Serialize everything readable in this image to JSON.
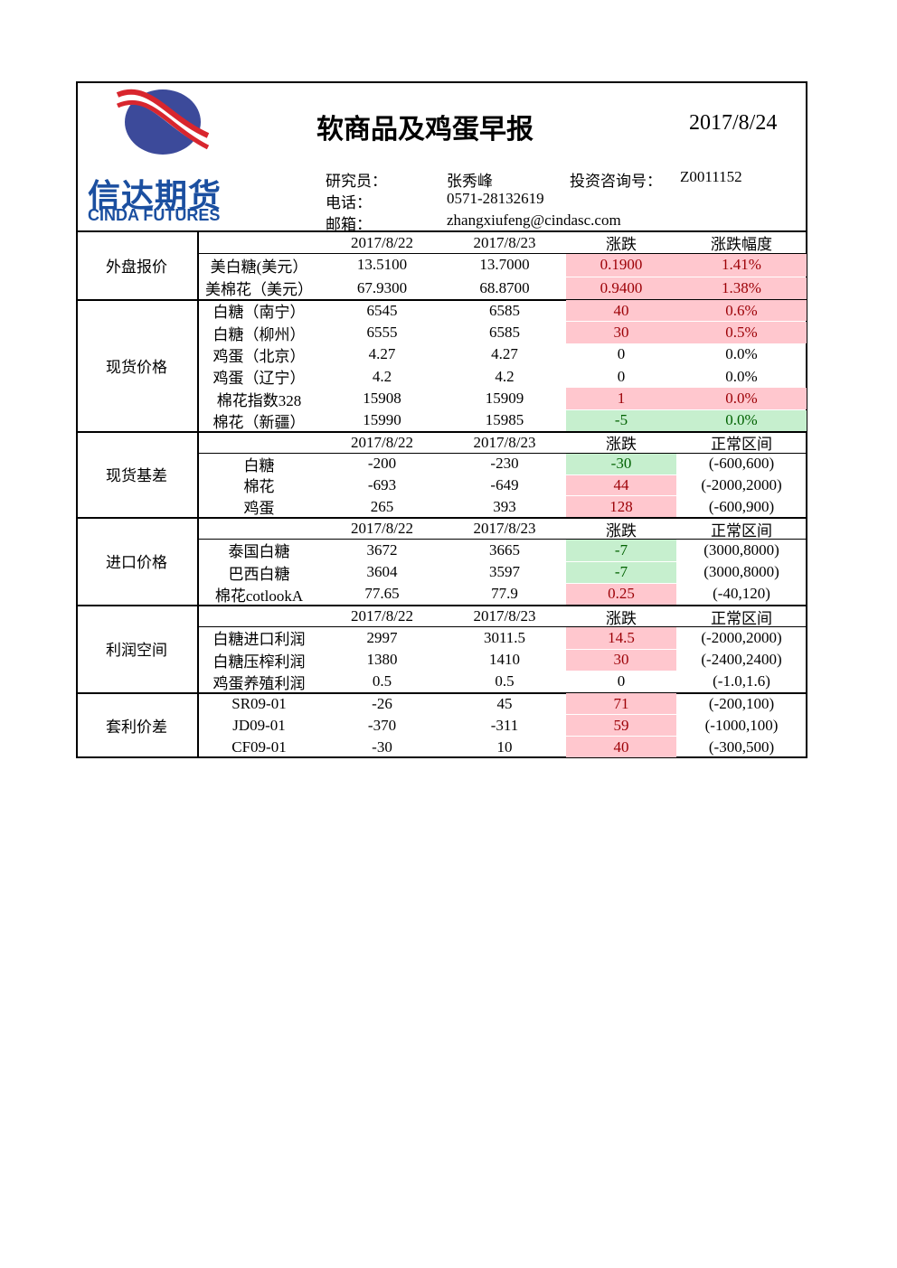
{
  "header": {
    "title": "软商品及鸡蛋早报",
    "date": "2017/8/24",
    "logo_cn": "信达期货",
    "logo_en": "CINDA FUTURES",
    "researcher_label": "研究员：",
    "researcher": "张秀峰",
    "license_label": "投资咨询号：",
    "license": "Z0011152",
    "phone_label": "电话：",
    "phone": "0571-28132619",
    "email_label": "邮箱：",
    "email": "zhangxiufeng@cindasc.com"
  },
  "sections": [
    {
      "name": "外盘报价",
      "columns": [
        "2017/8/22",
        "2017/8/23",
        "涨跌",
        "涨跌幅度"
      ],
      "highlight_cols": [
        3,
        4
      ],
      "rows": [
        {
          "cells": [
            "美白糖(美元）",
            "13.5100",
            "13.7000",
            "0.1900",
            "1.41%"
          ],
          "highlight": "red"
        },
        {
          "cells": [
            "美棉花（美元）",
            "67.9300",
            "68.8700",
            "0.9400",
            "1.38%"
          ],
          "highlight": "red"
        }
      ]
    },
    {
      "name": "现货价格",
      "highlight_cols": [
        3,
        4
      ],
      "rows": [
        {
          "cells": [
            "白糖（南宁）",
            "6545",
            "6585",
            "40",
            "0.6%"
          ],
          "highlight": "red"
        },
        {
          "cells": [
            "白糖（柳州）",
            "6555",
            "6585",
            "30",
            "0.5%"
          ],
          "highlight": "red"
        },
        {
          "cells": [
            "鸡蛋（北京）",
            "4.27",
            "4.27",
            "0",
            "0.0%"
          ]
        },
        {
          "cells": [
            "鸡蛋（辽宁）",
            "4.2",
            "4.2",
            "0",
            "0.0%"
          ]
        },
        {
          "cells": [
            "棉花指数328",
            "15908",
            "15909",
            "1",
            "0.0%"
          ],
          "highlight": "red"
        },
        {
          "cells": [
            "棉花（新疆）",
            "15990",
            "15985",
            "-5",
            "0.0%"
          ],
          "highlight": "green"
        }
      ]
    },
    {
      "name": "现货基差",
      "columns": [
        "2017/8/22",
        "2017/8/23",
        "涨跌",
        "正常区间"
      ],
      "highlight_cols": [
        3
      ],
      "rows": [
        {
          "cells": [
            "白糖",
            "-200",
            "-230",
            "-30",
            "(-600,600)"
          ],
          "highlight": "green"
        },
        {
          "cells": [
            "棉花",
            "-693",
            "-649",
            "44",
            "(-2000,2000)"
          ],
          "highlight": "red"
        },
        {
          "cells": [
            "鸡蛋",
            "265",
            "393",
            "128",
            "(-600,900)"
          ],
          "highlight": "red"
        }
      ]
    },
    {
      "name": "进口价格",
      "columns": [
        "2017/8/22",
        "2017/8/23",
        "涨跌",
        "正常区间"
      ],
      "highlight_cols": [
        3
      ],
      "rows": [
        {
          "cells": [
            "泰国白糖",
            "3672",
            "3665",
            "-7",
            "(3000,8000)"
          ],
          "highlight": "green"
        },
        {
          "cells": [
            "巴西白糖",
            "3604",
            "3597",
            "-7",
            "(3000,8000)"
          ],
          "highlight": "green"
        },
        {
          "cells": [
            "棉花cotlookA",
            "77.65",
            "77.9",
            "0.25",
            "(-40,120)"
          ],
          "highlight": "red"
        }
      ]
    },
    {
      "name": "利润空间",
      "columns": [
        "2017/8/22",
        "2017/8/23",
        "涨跌",
        "正常区间"
      ],
      "highlight_cols": [
        3
      ],
      "rows": [
        {
          "cells": [
            "白糖进口利润",
            "2997",
            "3011.5",
            "14.5",
            "(-2000,2000)"
          ],
          "highlight": "red"
        },
        {
          "cells": [
            "白糖压榨利润",
            "1380",
            "1410",
            "30",
            "(-2400,2400)"
          ],
          "highlight": "red"
        },
        {
          "cells": [
            "鸡蛋养殖利润",
            "0.5",
            "0.5",
            "0",
            "(-1.0,1.6)"
          ]
        }
      ]
    },
    {
      "name": "套利价差",
      "highlight_cols": [
        3
      ],
      "rows": [
        {
          "cells": [
            "SR09-01",
            "-26",
            "45",
            "71",
            "(-200,100)"
          ],
          "highlight": "red"
        },
        {
          "cells": [
            "JD09-01",
            "-370",
            "-311",
            "59",
            "(-1000,100)"
          ],
          "highlight": "red"
        },
        {
          "cells": [
            "CF09-01",
            "-30",
            "10",
            "40",
            "(-300,500)"
          ],
          "highlight": "red"
        }
      ]
    }
  ]
}
